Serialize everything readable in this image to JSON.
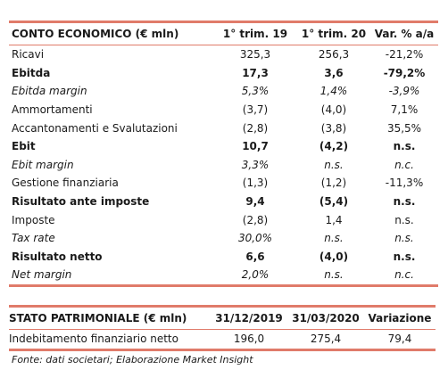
{
  "income_statement": {
    "header": [
      "CONTO ECONOMICO (€ mln)",
      "1° trim. 19",
      "1° trim. 20",
      "Var. % a/a"
    ],
    "rows": [
      {
        "label": "Ricavi",
        "v1": "325,3",
        "v2": "256,3",
        "v3": "-21,2%",
        "style": "normal"
      },
      {
        "label": "Ebitda",
        "v1": "17,3",
        "v2": "3,6",
        "v3": "-79,2%",
        "style": "bold"
      },
      {
        "label": "Ebitda margin",
        "v1": "5,3%",
        "v2": "1,4%",
        "v3": "-3,9%",
        "style": "italic"
      },
      {
        "label": "Ammortamenti",
        "v1": "(3,7)",
        "v2": "(4,0)",
        "v3": "7,1%",
        "style": "normal"
      },
      {
        "label": "Accantonamenti e Svalutazioni",
        "v1": "(2,8)",
        "v2": "(3,8)",
        "v3": "35,5%",
        "style": "normal"
      },
      {
        "label": "Ebit",
        "v1": "10,7",
        "v2": "(4,2)",
        "v3": "n.s.",
        "style": "bold"
      },
      {
        "label": "Ebit margin",
        "v1": "3,3%",
        "v2": "n.s.",
        "v3": "n.c.",
        "style": "italic"
      },
      {
        "label": "Gestione finanziaria",
        "v1": "(1,3)",
        "v2": "(1,2)",
        "v3": "-11,3%",
        "style": "normal"
      },
      {
        "label": "Risultato ante imposte",
        "v1": "9,4",
        "v2": "(5,4)",
        "v3": "n.s.",
        "style": "bold"
      },
      {
        "label": "Imposte",
        "v1": "(2,8)",
        "v2": "1,4",
        "v3": "n.s.",
        "style": "normal"
      },
      {
        "label": "Tax rate",
        "v1": "30,0%",
        "v2": "n.s.",
        "v3": "n.s.",
        "style": "italic"
      },
      {
        "label": "Risultato netto",
        "v1": "6,6",
        "v2": "(4,0)",
        "v3": "n.s.",
        "style": "bold"
      },
      {
        "label": "Net margin",
        "v1": "2,0%",
        "v2": "n.s.",
        "v3": "n.c.",
        "style": "italic"
      }
    ]
  },
  "balance_sheet": {
    "header": [
      "STATO PATRIMONIALE (€ mln)",
      "31/12/2019",
      "31/03/2020",
      "Variazione"
    ],
    "rows": [
      {
        "label": "Indebitamento finanziario netto",
        "v1": "196,0",
        "v2": "275,4",
        "v3": "79,4",
        "style": "normal"
      }
    ]
  },
  "source": "Fonte: dati societari; Elaborazione Market Insight",
  "colors": {
    "rule": "#e07b6a"
  }
}
